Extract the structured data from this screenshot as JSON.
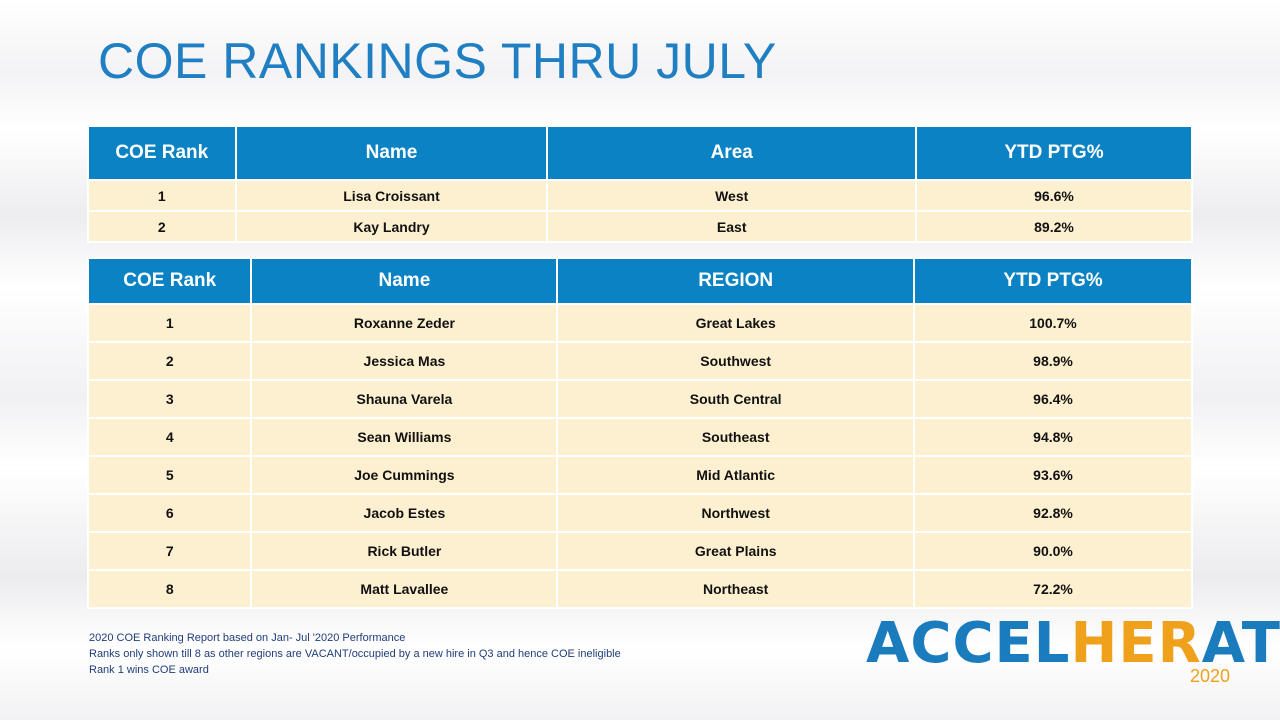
{
  "title": "COE RANKINGS THRU JULY",
  "table_area": {
    "headers": [
      "COE Rank",
      "Name",
      "Area",
      "YTD PTG%"
    ],
    "rows": [
      [
        "1",
        "Lisa Croissant",
        "West",
        "96.6%"
      ],
      [
        "2",
        "Kay Landry",
        "East",
        "89.2%"
      ]
    ]
  },
  "table_region": {
    "headers": [
      "COE Rank",
      "Name",
      "REGION",
      "YTD PTG%"
    ],
    "rows": [
      [
        "1",
        "Roxanne Zeder",
        "Great Lakes",
        "100.7%"
      ],
      [
        "2",
        "Jessica Mas",
        "Southwest",
        "98.9%"
      ],
      [
        "3",
        "Shauna Varela",
        "South Central",
        "96.4%"
      ],
      [
        "4",
        "Sean Williams",
        "Southeast",
        "94.8%"
      ],
      [
        "5",
        "Joe Cummings",
        "Mid Atlantic",
        "93.6%"
      ],
      [
        "6",
        "Jacob Estes",
        "Northwest",
        "92.8%"
      ],
      [
        "7",
        "Rick Butler",
        "Great Plains",
        "90.0%"
      ],
      [
        "8",
        "Matt Lavallee",
        "Northeast",
        "72.2%"
      ]
    ]
  },
  "footnotes": [
    "2020 COE Ranking Report based on Jan- Jul '2020 Performance",
    "Ranks only shown till 8 as other regions are VACANT/occupied by a new hire in Q3 and hence COE ineligible",
    "Rank 1 wins COE award"
  ],
  "logo": {
    "part1": "ACCEL",
    "part2": "HER",
    "part3": "ATE",
    "year": "2020"
  },
  "colors": {
    "header_bg": "#0b82c3",
    "row_bg": "#fdf0d0",
    "title": "#1f7fc2",
    "logo_blue": "#1a7bbd",
    "logo_orange": "#f0a11c"
  }
}
